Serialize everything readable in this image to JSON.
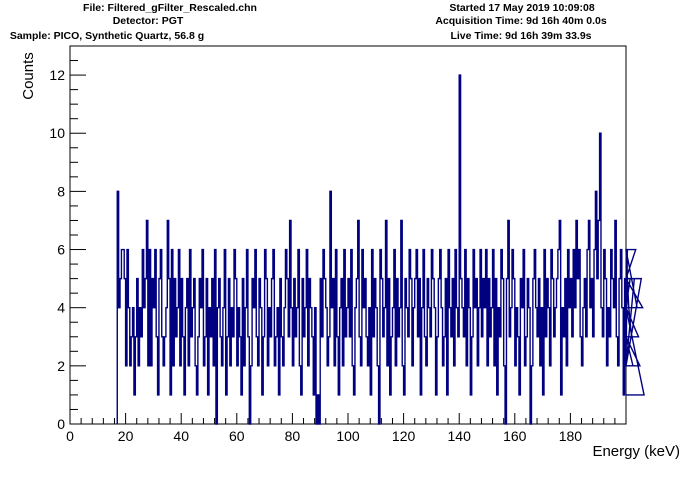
{
  "header": {
    "file_line": "File: Filtered_gFilter_Rescaled.chn",
    "detector_line": "Detector: PGT",
    "sample_line": "Sample: PICO, Synthetic Quartz, 56.8 g",
    "started_line": "Started 17 May 2019 10:09:08",
    "acq_line": "Acquisition Time: 9d 16h 40m 0.0s",
    "live_line": "Live Time: 9d 16h 39m 33.9s"
  },
  "chart_data": {
    "type": "line",
    "style": "histogram-step",
    "xlabel": "Energy (keV)",
    "ylabel": "Counts",
    "xlim": [
      0,
      200
    ],
    "ylim": [
      0,
      13
    ],
    "xticks": [
      "0",
      "20",
      "40",
      "60",
      "80",
      "100",
      "120",
      "140",
      "160",
      "180"
    ],
    "yticks": [
      "0",
      "2",
      "4",
      "6",
      "8",
      "10",
      "12"
    ],
    "grid": false,
    "legend": "none",
    "line_color": "#000080",
    "bin_width_keV": 0.5,
    "series": [
      {
        "x_start": 17.0,
        "counts": [
          8,
          4,
          5,
          6,
          6,
          5,
          2,
          6,
          4,
          2,
          3,
          4,
          1,
          3,
          5,
          2,
          4,
          3,
          6,
          4,
          5,
          7,
          2,
          6,
          2,
          5,
          4,
          6,
          3,
          1,
          5,
          6,
          3,
          2,
          3,
          4,
          7,
          5,
          1,
          6,
          2,
          5,
          3,
          4,
          6,
          2,
          5,
          3,
          1,
          4,
          5,
          2,
          6,
          3,
          4,
          5,
          2,
          1,
          3,
          5,
          4,
          6,
          2,
          3,
          5,
          1,
          4,
          3,
          5,
          2,
          6,
          0,
          4,
          5,
          3,
          2,
          4,
          6,
          1,
          3,
          5,
          2,
          4,
          3,
          6,
          5,
          2,
          4,
          3,
          1,
          5,
          2,
          4,
          6,
          3,
          0,
          2,
          5,
          4,
          6,
          3,
          2,
          5,
          4,
          1,
          3,
          6,
          5,
          2,
          4,
          3,
          5,
          6,
          2,
          3,
          4,
          1,
          5,
          3,
          2,
          4,
          6,
          5,
          3,
          7,
          4,
          2,
          5,
          3,
          4,
          6,
          2,
          1,
          5,
          3,
          4,
          6,
          2,
          5,
          4,
          3,
          1,
          4,
          0,
          1,
          0,
          5,
          3,
          6,
          5,
          4,
          2,
          3,
          8,
          4,
          5,
          2,
          6,
          3,
          1,
          4,
          5,
          2,
          6,
          3,
          4,
          5,
          3,
          6,
          2,
          1,
          4,
          5,
          7,
          3,
          2,
          6,
          4,
          5,
          3,
          2,
          4,
          1,
          6,
          3,
          5,
          4,
          2,
          0,
          6,
          5,
          3,
          4,
          7,
          2,
          5,
          1,
          3,
          4,
          6,
          2,
          5,
          3,
          4,
          7,
          2,
          1,
          5,
          4,
          3,
          6,
          5,
          2,
          4,
          5,
          6,
          3,
          5,
          1,
          4,
          6,
          3,
          2,
          5,
          4,
          3,
          6,
          5,
          4,
          1,
          3,
          5,
          6,
          4,
          2,
          3,
          5,
          1,
          6,
          4,
          3,
          5,
          2,
          6,
          4,
          3,
          12,
          5,
          4,
          3,
          6,
          2,
          5,
          4,
          1,
          3,
          6,
          4,
          5,
          2,
          4,
          6,
          3,
          5,
          4,
          6,
          2,
          5,
          3,
          4,
          6,
          2,
          5,
          1,
          4,
          3,
          6,
          5,
          2,
          0,
          5,
          7,
          3,
          4,
          6,
          5,
          2,
          4,
          3,
          1,
          5,
          4,
          6,
          2,
          3,
          5,
          4,
          0,
          2,
          5,
          6,
          4,
          3,
          5,
          2,
          4,
          1,
          6,
          3,
          5,
          4,
          2,
          6,
          5,
          3,
          4,
          5,
          6,
          7,
          1,
          4,
          3,
          5,
          2,
          6,
          4,
          5,
          3,
          6,
          4,
          7,
          5,
          6,
          3,
          2,
          4,
          5,
          3,
          6,
          7,
          4,
          5,
          3,
          6,
          8,
          5,
          7,
          10,
          4,
          3,
          6,
          5,
          2,
          4,
          3,
          6,
          5,
          4,
          7,
          3,
          2,
          5,
          6,
          4,
          1,
          5,
          2,
          6,
          4,
          5,
          3,
          2,
          5,
          6,
          4,
          3,
          2,
          5,
          4,
          1
        ]
      }
    ]
  }
}
